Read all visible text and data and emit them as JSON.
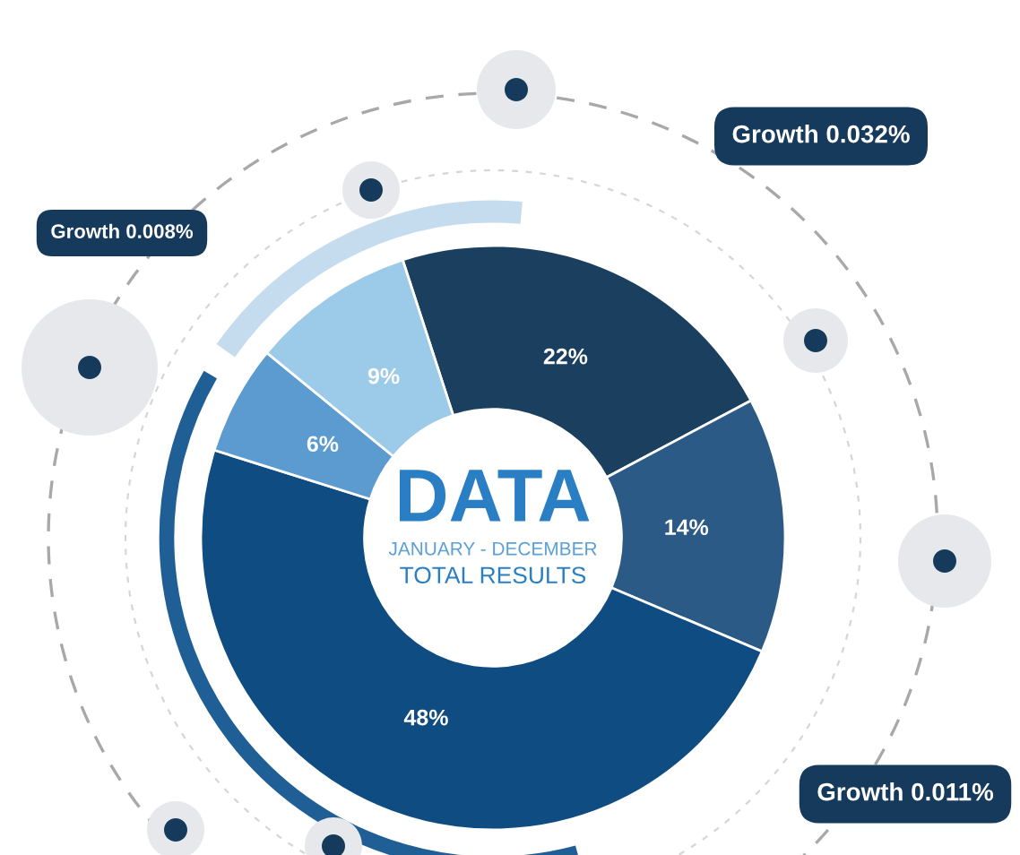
{
  "chart_data": {
    "type": "donut",
    "categories": [
      null,
      null,
      null,
      null,
      null
    ],
    "values": [
      22,
      14,
      48,
      6,
      9
    ],
    "colors": [
      "#1b3f5e",
      "#2a5a85",
      "#0f4c81",
      "#5b9bd0",
      "#9ccbe9"
    ],
    "value_labels": [
      "22%",
      "14%",
      "48%",
      "6%",
      "9%"
    ],
    "title": "DATA",
    "subtitle": "JANUARY - DECEMBER",
    "xlabel": "TOTAL RESULTS",
    "annotations": [
      "Growth 0.008%",
      "Growth 0.032%",
      "Growth 0.011%"
    ]
  }
}
